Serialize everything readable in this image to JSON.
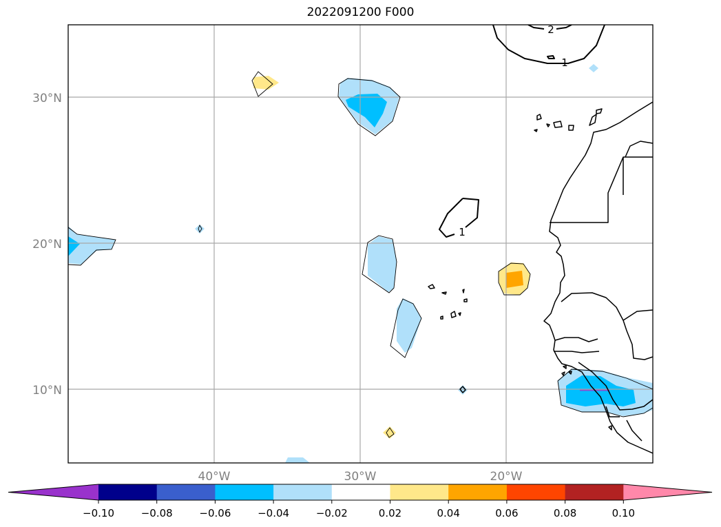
{
  "map": {
    "title": "2022091200 F000",
    "lat_labels": [
      "30°N",
      "20°N",
      "10°N"
    ],
    "lon_labels": [
      "40°W",
      "30°W",
      "20°W"
    ],
    "contour_labels": [
      "2",
      "1",
      "1"
    ]
  },
  "colorbar": {
    "tick_labels": [
      "−0.10",
      "−0.08",
      "−0.06",
      "−0.04",
      "−0.02",
      "0.02",
      "0.04",
      "0.06",
      "0.08",
      "0.10"
    ],
    "under_color": "#9932cc",
    "over_color": "#ff88aa",
    "colors": [
      "#00008b",
      "#3a5fcd",
      "#00bfff",
      "#b0e0fa",
      "#ffffff",
      "#ffe88a",
      "#ffa500",
      "#ff4500",
      "#b22222"
    ],
    "levels": [
      -0.1,
      -0.08,
      -0.06,
      -0.04,
      -0.02,
      0.02,
      0.04,
      0.06,
      0.08,
      0.1
    ]
  }
}
